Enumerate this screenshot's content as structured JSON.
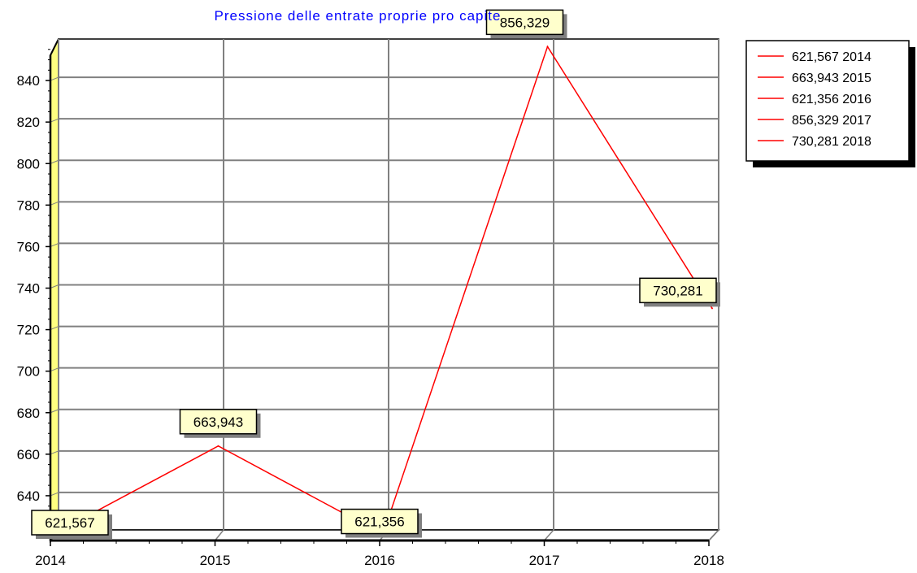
{
  "chart_data": {
    "type": "line",
    "title": "Pressione delle entrate proprie pro capite",
    "categories": [
      "2014",
      "2015",
      "2016",
      "2017",
      "2018"
    ],
    "values": [
      621.567,
      663.943,
      621.356,
      856.329,
      730.281
    ],
    "value_labels": [
      "621,567",
      "663,943",
      "621,356",
      "856,329",
      "730,281"
    ],
    "legend": [
      "621,567 2014",
      "663,943 2015",
      "621,356 2016",
      "856,329 2017",
      "730,281 2018"
    ],
    "y_ticks": [
      "640",
      "660",
      "680",
      "700",
      "720",
      "740",
      "760",
      "780",
      "800",
      "820",
      "840"
    ],
    "ylim": [
      620,
      860
    ],
    "grid": true,
    "legend_position": "top-right",
    "colors": {
      "line": "#ff0000",
      "title": "#0000ff",
      "grid": "#808080",
      "label_bg": "#ffffcc",
      "wall": "#ffff80"
    }
  }
}
